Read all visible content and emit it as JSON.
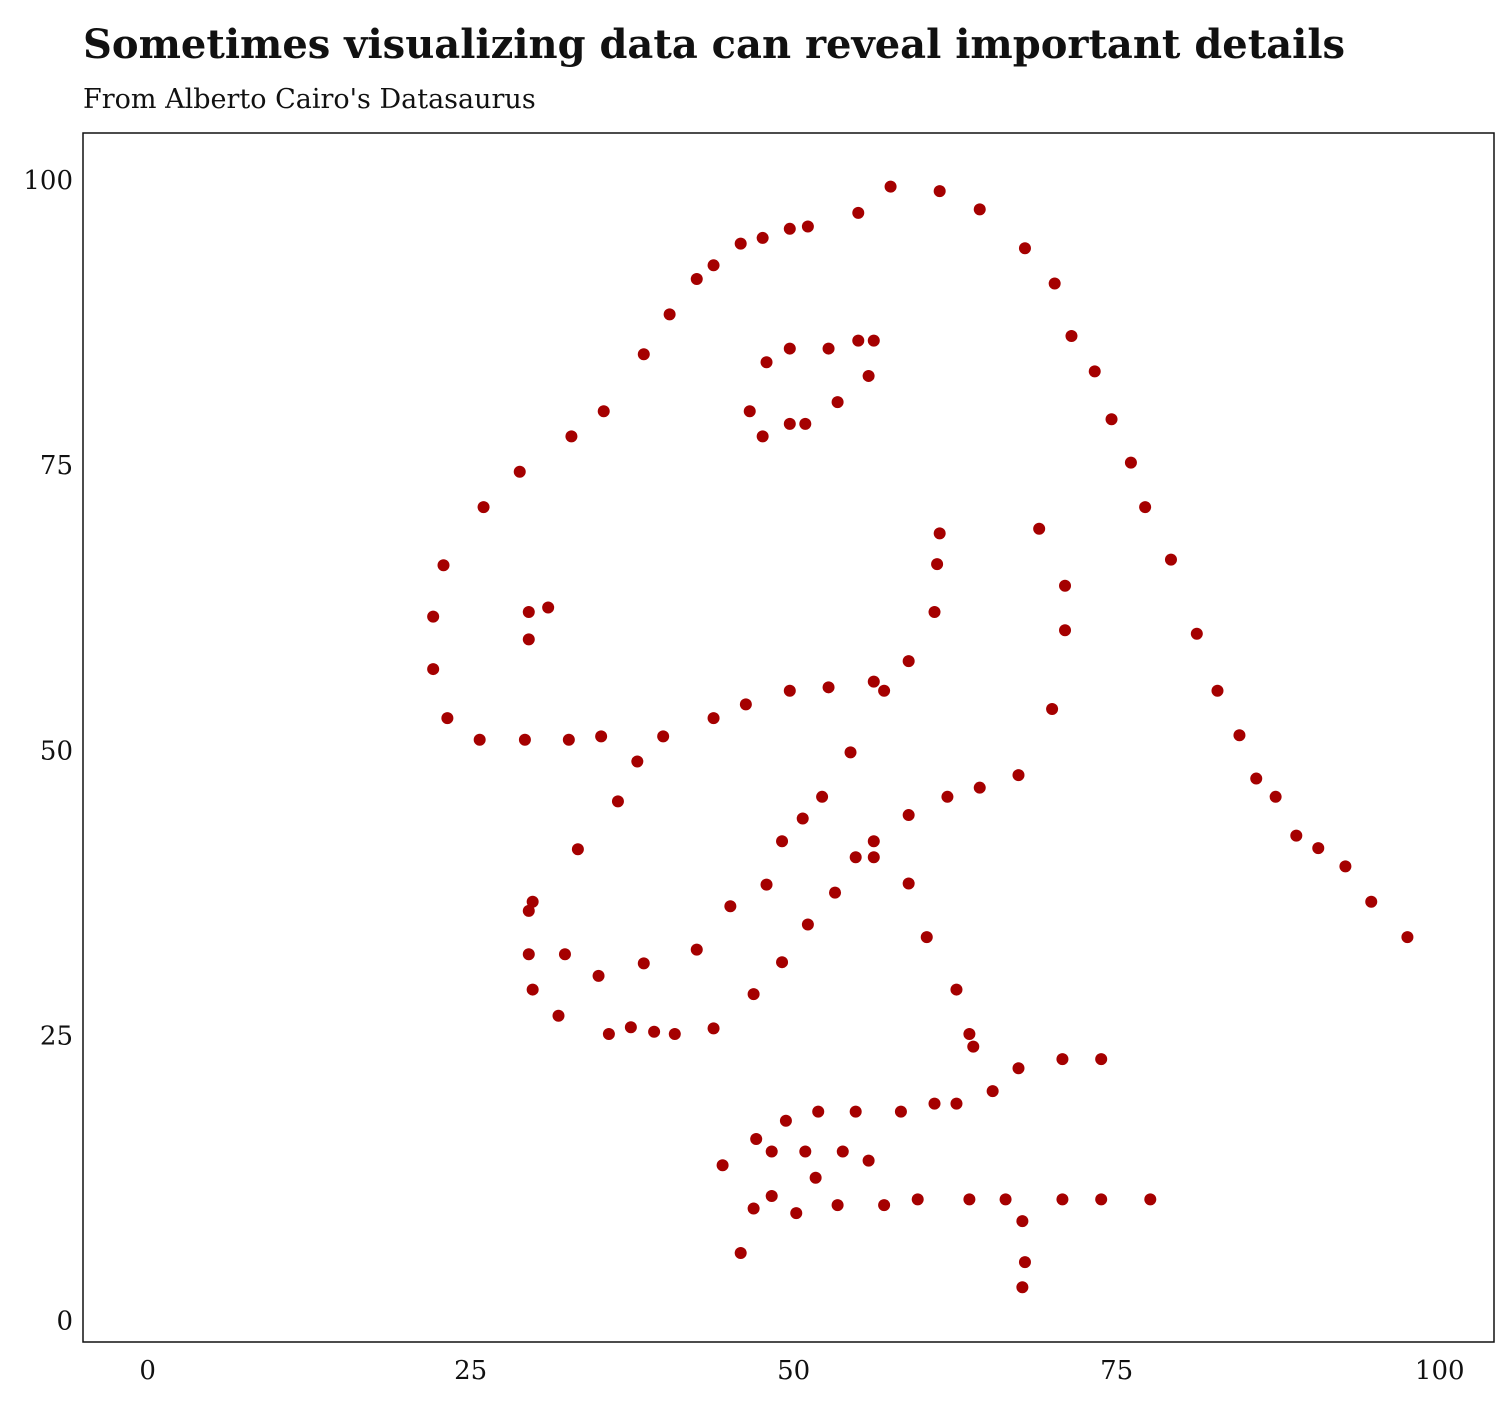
{
  "chart_data": {
    "type": "scatter",
    "title": "Sometimes visualizing data can reveal important details",
    "subtitle": "From Alberto Cairo's Datasaurus",
    "color": "#a50000",
    "x": [
      55.0,
      57.5,
      61.3,
      64.4,
      67.9,
      70.2,
      71.5,
      73.3,
      74.6,
      76.1,
      77.2,
      79.2,
      81.2,
      82.8,
      84.5,
      85.8,
      87.3,
      88.9,
      90.6,
      92.7,
      94.7,
      97.5,
      51.1,
      49.7,
      47.6,
      45.9,
      43.8,
      42.5,
      40.4,
      38.4,
      35.3,
      32.8,
      28.8,
      26.0,
      22.9,
      22.1,
      22.1,
      23.2,
      25.7,
      29.2,
      32.6,
      35.1,
      37.9,
      36.4,
      39.9,
      43.8,
      46.3,
      49.7,
      52.7,
      56.2,
      57.0,
      58.9,
      60.9,
      61.1,
      61.3,
      69.0,
      71.0,
      71.0,
      70.0,
      67.4,
      64.4,
      61.9,
      58.9,
      54.4,
      52.2,
      50.7,
      49.1,
      56.2,
      56.2,
      54.8,
      53.2,
      51.1,
      47.9,
      45.1,
      49.1,
      46.9,
      42.5,
      38.4,
      34.9,
      33.3,
      29.8,
      29.5,
      29.5,
      32.3,
      29.8,
      31.8,
      35.7,
      37.4,
      39.2,
      40.8,
      43.8,
      58.9,
      60.3,
      62.6,
      63.6,
      63.9,
      65.4,
      67.4,
      70.8,
      73.8,
      67.7,
      67.9,
      67.7,
      77.6,
      73.8,
      70.8,
      66.4,
      63.6,
      59.6,
      57.0,
      53.4,
      50.2,
      46.9,
      45.9,
      48.3,
      44.5,
      47.1,
      48.3,
      49.4,
      50.9,
      51.7,
      51.9,
      53.8,
      54.8,
      55.8,
      58.3,
      60.9,
      62.6,
      46.6,
      47.6,
      49.7,
      50.9,
      53.4,
      55.8,
      56.2,
      55.0,
      52.7,
      49.7,
      47.9,
      29.5,
      29.5,
      31.0
    ],
    "values": [
      97.3,
      99.6,
      99.2,
      97.6,
      94.2,
      91.1,
      86.5,
      83.4,
      79.2,
      75.4,
      71.5,
      66.9,
      60.4,
      55.4,
      51.5,
      47.7,
      46.1,
      42.7,
      41.6,
      40.0,
      36.9,
      33.8,
      96.1,
      95.9,
      95.1,
      94.6,
      92.7,
      91.5,
      88.4,
      84.9,
      79.9,
      77.7,
      74.6,
      71.5,
      66.4,
      61.9,
      57.3,
      53.0,
      51.1,
      51.1,
      51.1,
      51.4,
      49.2,
      45.7,
      51.4,
      53.0,
      54.2,
      55.4,
      55.7,
      56.2,
      55.4,
      58.0,
      62.3,
      66.5,
      69.2,
      69.6,
      64.6,
      60.7,
      53.8,
      48.0,
      46.9,
      46.1,
      44.5,
      50.0,
      46.1,
      44.2,
      42.2,
      42.2,
      40.8,
      40.8,
      37.7,
      34.9,
      38.4,
      36.5,
      31.6,
      28.8,
      32.7,
      31.5,
      30.4,
      41.5,
      36.9,
      36.1,
      32.3,
      32.3,
      29.2,
      26.9,
      25.3,
      25.9,
      25.5,
      25.3,
      25.8,
      38.5,
      33.8,
      29.2,
      25.3,
      24.2,
      20.3,
      22.3,
      23.1,
      23.1,
      8.9,
      5.3,
      3.1,
      10.8,
      10.8,
      10.8,
      10.8,
      10.8,
      10.8,
      10.3,
      10.3,
      9.6,
      10.0,
      6.1,
      11.1,
      13.8,
      16.1,
      15.0,
      17.7,
      15.0,
      12.7,
      18.5,
      15.0,
      18.5,
      14.2,
      18.5,
      19.2,
      19.2,
      79.9,
      77.7,
      78.8,
      78.8,
      80.7,
      83.0,
      86.1,
      86.1,
      85.4,
      85.4,
      84.2,
      62.3,
      59.9,
      62.7
    ],
    "xlim": [
      -5,
      104.2
    ],
    "ylim": [
      -1.7,
      104.3
    ],
    "xticks": [
      0,
      25,
      50,
      75,
      100
    ],
    "yticks": [
      0,
      25,
      50,
      75,
      100
    ],
    "grid": false
  }
}
